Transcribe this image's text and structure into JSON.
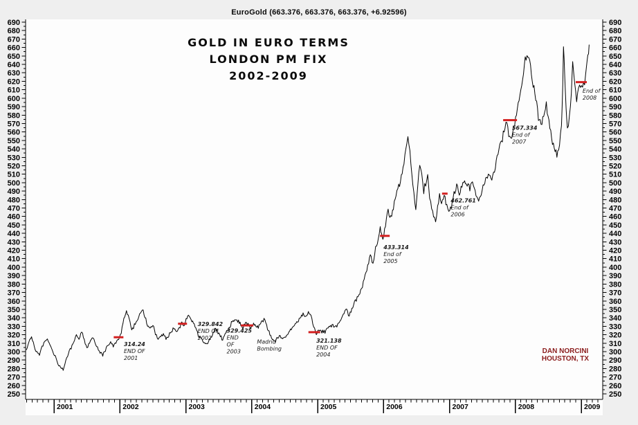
{
  "window_title": "EuroGold (663.376, 663.376, 663.376, +6.92596)",
  "chart_title_lines": [
    "GOLD IN EURO TERMS",
    "LONDON PM FIX",
    "2002-2009"
  ],
  "watermark": {
    "line1": "DAN NORCINI",
    "line2": "HOUSTON, TX"
  },
  "colors": {
    "outer_bg": "#efefef",
    "plot_bg": "#fdfdfd",
    "axis": "#000000",
    "price_line": "#000000",
    "annotation_red": "#d32020",
    "annotation_text": "#1a1a1a",
    "watermark_red": "#8b1c1c"
  },
  "annotations": [
    {
      "lines": [
        "314.24",
        "END OF",
        "2001"
      ],
      "dash": {
        "year": 2001.98,
        "value": 317,
        "w": 14
      },
      "text_anchor": {
        "year": 2002.06,
        "value": 313
      }
    },
    {
      "lines": [
        "329.842",
        "END OF",
        "2002"
      ],
      "dash": {
        "year": 2002.95,
        "value": 333,
        "w": 13
      },
      "text_anchor": {
        "year": 2003.18,
        "value": 337
      }
    },
    {
      "lines": [
        "329.425",
        "END",
        "OF",
        "2003"
      ],
      "dash": {
        "year": 2003.93,
        "value": 331,
        "w": 18
      },
      "text_anchor": {
        "year": 2003.62,
        "value": 329
      }
    },
    {
      "lines": [
        "Madrid",
        "Bombing"
      ],
      "dash": null,
      "text_anchor": {
        "year": 2004.08,
        "value": 316
      }
    },
    {
      "lines": [
        "321.138",
        "END OF",
        "2004"
      ],
      "dash": {
        "year": 2004.95,
        "value": 323,
        "w": 17
      },
      "text_anchor": {
        "year": 2004.98,
        "value": 317
      }
    },
    {
      "lines": [
        "433.314",
        "End of",
        "2005"
      ],
      "dash": {
        "year": 2006.02,
        "value": 437,
        "w": 14
      },
      "text_anchor": {
        "year": 2006.0,
        "value": 428
      }
    },
    {
      "lines": [
        "462.761",
        "End of",
        "2006"
      ],
      "dash": {
        "year": 2006.93,
        "value": 487,
        "w": 8
      },
      "text_anchor": {
        "year": 2007.02,
        "value": 483
      }
    },
    {
      "lines": [
        "567.334",
        "End of",
        "2007"
      ],
      "dash": {
        "year": 2007.92,
        "value": 574,
        "w": 20
      },
      "text_anchor": {
        "year": 2007.95,
        "value": 569
      }
    },
    {
      "lines": [
        "End of",
        "2008"
      ],
      "dash": {
        "year": 2009.0,
        "value": 619,
        "w": 16
      },
      "text_anchor": {
        "year": 2009.02,
        "value": 613
      }
    }
  ],
  "chart_data": {
    "type": "line",
    "title": "EuroGold (663.376, 663.376, 663.376, +6.92596)",
    "subtitle": "GOLD IN EURO TERMS - LONDON PM FIX - 2002-2009",
    "legend_position": "none",
    "grid": false,
    "x_axis": {
      "range": [
        2000.58,
        2009.33
      ],
      "year_ticks": [
        2001,
        2002,
        2003,
        2004,
        2005,
        2006,
        2007,
        2008,
        2009
      ],
      "minor_tick": "monthly"
    },
    "y_axis": {
      "min": 250,
      "max": 690,
      "tick_step": 10,
      "minor_step": 5,
      "sides": "both"
    },
    "key_levels": {
      "end_2001": 314.24,
      "end_2002": 329.842,
      "end_2003": 329.425,
      "end_2004": 321.138,
      "end_2005": 433.314,
      "end_2006": 462.761,
      "end_2007": 567.334,
      "last_price": 663.376,
      "change": 6.92596
    },
    "series": [
      {
        "name": "Gold in Euro terms (London PM Fix)",
        "points": [
          [
            2000.58,
            303
          ],
          [
            2000.62,
            311
          ],
          [
            2000.66,
            317
          ],
          [
            2000.7,
            306
          ],
          [
            2000.74,
            299
          ],
          [
            2000.78,
            296
          ],
          [
            2000.82,
            306
          ],
          [
            2000.86,
            312
          ],
          [
            2000.9,
            316
          ],
          [
            2000.94,
            309
          ],
          [
            2000.98,
            300
          ],
          [
            2001.02,
            295
          ],
          [
            2001.06,
            286
          ],
          [
            2001.1,
            281
          ],
          [
            2001.14,
            279
          ],
          [
            2001.18,
            290
          ],
          [
            2001.22,
            298
          ],
          [
            2001.26,
            305
          ],
          [
            2001.3,
            312
          ],
          [
            2001.34,
            320
          ],
          [
            2001.38,
            315
          ],
          [
            2001.42,
            324
          ],
          [
            2001.46,
            314
          ],
          [
            2001.5,
            304
          ],
          [
            2001.54,
            311
          ],
          [
            2001.58,
            317
          ],
          [
            2001.62,
            312
          ],
          [
            2001.66,
            305
          ],
          [
            2001.7,
            299
          ],
          [
            2001.74,
            296
          ],
          [
            2001.78,
            302
          ],
          [
            2001.82,
            307
          ],
          [
            2001.86,
            311
          ],
          [
            2001.9,
            307
          ],
          [
            2001.94,
            311
          ],
          [
            2001.98,
            314
          ],
          [
            2002.02,
            322
          ],
          [
            2002.06,
            338
          ],
          [
            2002.1,
            348
          ],
          [
            2002.14,
            340
          ],
          [
            2002.18,
            325
          ],
          [
            2002.22,
            330
          ],
          [
            2002.26,
            336
          ],
          [
            2002.3,
            344
          ],
          [
            2002.34,
            350
          ],
          [
            2002.38,
            342
          ],
          [
            2002.42,
            331
          ],
          [
            2002.46,
            327
          ],
          [
            2002.5,
            332
          ],
          [
            2002.54,
            321
          ],
          [
            2002.58,
            314
          ],
          [
            2002.62,
            317
          ],
          [
            2002.66,
            321
          ],
          [
            2002.7,
            315
          ],
          [
            2002.74,
            319
          ],
          [
            2002.78,
            324
          ],
          [
            2002.82,
            328
          ],
          [
            2002.86,
            323
          ],
          [
            2002.9,
            327
          ],
          [
            2002.94,
            334
          ],
          [
            2002.98,
            330
          ],
          [
            2003.04,
            344
          ],
          [
            2003.08,
            339
          ],
          [
            2003.14,
            330
          ],
          [
            2003.2,
            319
          ],
          [
            2003.26,
            312
          ],
          [
            2003.32,
            308
          ],
          [
            2003.38,
            316
          ],
          [
            2003.44,
            327
          ],
          [
            2003.5,
            321
          ],
          [
            2003.56,
            315
          ],
          [
            2003.62,
            324
          ],
          [
            2003.68,
            331
          ],
          [
            2003.74,
            338
          ],
          [
            2003.8,
            336
          ],
          [
            2003.86,
            329
          ],
          [
            2003.92,
            334
          ],
          [
            2003.98,
            329
          ],
          [
            2004.04,
            333
          ],
          [
            2004.1,
            329
          ],
          [
            2004.16,
            336
          ],
          [
            2004.2,
            339
          ],
          [
            2004.24,
            327
          ],
          [
            2004.3,
            317
          ],
          [
            2004.36,
            313
          ],
          [
            2004.42,
            319
          ],
          [
            2004.48,
            315
          ],
          [
            2004.54,
            321
          ],
          [
            2004.6,
            327
          ],
          [
            2004.66,
            333
          ],
          [
            2004.72,
            338
          ],
          [
            2004.78,
            344
          ],
          [
            2004.82,
            340
          ],
          [
            2004.86,
            346
          ],
          [
            2004.9,
            341
          ],
          [
            2004.94,
            331
          ],
          [
            2004.98,
            321
          ],
          [
            2005.04,
            327
          ],
          [
            2005.1,
            322
          ],
          [
            2005.16,
            328
          ],
          [
            2005.22,
            331
          ],
          [
            2005.28,
            329
          ],
          [
            2005.34,
            336
          ],
          [
            2005.4,
            344
          ],
          [
            2005.44,
            351
          ],
          [
            2005.48,
            343
          ],
          [
            2005.52,
            350
          ],
          [
            2005.56,
            358
          ],
          [
            2005.6,
            363
          ],
          [
            2005.64,
            370
          ],
          [
            2005.68,
            378
          ],
          [
            2005.72,
            390
          ],
          [
            2005.76,
            404
          ],
          [
            2005.8,
            412
          ],
          [
            2005.84,
            406
          ],
          [
            2005.88,
            420
          ],
          [
            2005.92,
            434
          ],
          [
            2005.95,
            446
          ],
          [
            2005.97,
            439
          ],
          [
            2005.99,
            433
          ],
          [
            2006.03,
            450
          ],
          [
            2006.07,
            466
          ],
          [
            2006.11,
            459
          ],
          [
            2006.15,
            471
          ],
          [
            2006.19,
            485
          ],
          [
            2006.23,
            497
          ],
          [
            2006.27,
            508
          ],
          [
            2006.31,
            522
          ],
          [
            2006.34,
            541
          ],
          [
            2006.37,
            556
          ],
          [
            2006.4,
            534
          ],
          [
            2006.43,
            512
          ],
          [
            2006.46,
            488
          ],
          [
            2006.49,
            471
          ],
          [
            2006.52,
            498
          ],
          [
            2006.55,
            524
          ],
          [
            2006.58,
            507
          ],
          [
            2006.61,
            489
          ],
          [
            2006.64,
            499
          ],
          [
            2006.67,
            506
          ],
          [
            2006.7,
            483
          ],
          [
            2006.73,
            470
          ],
          [
            2006.76,
            461
          ],
          [
            2006.79,
            456
          ],
          [
            2006.82,
            470
          ],
          [
            2006.85,
            486
          ],
          [
            2006.88,
            478
          ],
          [
            2006.92,
            486
          ],
          [
            2006.96,
            472
          ],
          [
            2006.99,
            463
          ],
          [
            2007.03,
            472
          ],
          [
            2007.07,
            486
          ],
          [
            2007.11,
            495
          ],
          [
            2007.15,
            488
          ],
          [
            2007.19,
            497
          ],
          [
            2007.23,
            504
          ],
          [
            2007.27,
            498
          ],
          [
            2007.31,
            492
          ],
          [
            2007.35,
            500
          ],
          [
            2007.39,
            490
          ],
          [
            2007.43,
            480
          ],
          [
            2007.47,
            486
          ],
          [
            2007.51,
            495
          ],
          [
            2007.55,
            503
          ],
          [
            2007.59,
            512
          ],
          [
            2007.63,
            502
          ],
          [
            2007.67,
            512
          ],
          [
            2007.71,
            524
          ],
          [
            2007.75,
            538
          ],
          [
            2007.79,
            551
          ],
          [
            2007.83,
            563
          ],
          [
            2007.87,
            570
          ],
          [
            2007.9,
            558
          ],
          [
            2007.93,
            549
          ],
          [
            2007.96,
            561
          ],
          [
            2007.99,
            567
          ],
          [
            2008.03,
            584
          ],
          [
            2008.07,
            604
          ],
          [
            2008.11,
            626
          ],
          [
            2008.15,
            644
          ],
          [
            2008.19,
            651
          ],
          [
            2008.23,
            636
          ],
          [
            2008.27,
            617
          ],
          [
            2008.31,
            599
          ],
          [
            2008.35,
            581
          ],
          [
            2008.39,
            568
          ],
          [
            2008.43,
            580
          ],
          [
            2008.47,
            593
          ],
          [
            2008.51,
            572
          ],
          [
            2008.55,
            553
          ],
          [
            2008.59,
            541
          ],
          [
            2008.63,
            534
          ],
          [
            2008.67,
            544
          ],
          [
            2008.7,
            571
          ],
          [
            2008.72,
            620
          ],
          [
            2008.73,
            664
          ],
          [
            2008.75,
            625
          ],
          [
            2008.77,
            588
          ],
          [
            2008.79,
            562
          ],
          [
            2008.82,
            577
          ],
          [
            2008.85,
            608
          ],
          [
            2008.87,
            641
          ],
          [
            2008.9,
            616
          ],
          [
            2008.93,
            592
          ],
          [
            2008.96,
            611
          ],
          [
            2008.99,
            621
          ],
          [
            2009.02,
            612
          ],
          [
            2009.05,
            620
          ],
          [
            2009.08,
            636
          ],
          [
            2009.1,
            650
          ],
          [
            2009.12,
            663.4
          ]
        ]
      }
    ]
  }
}
